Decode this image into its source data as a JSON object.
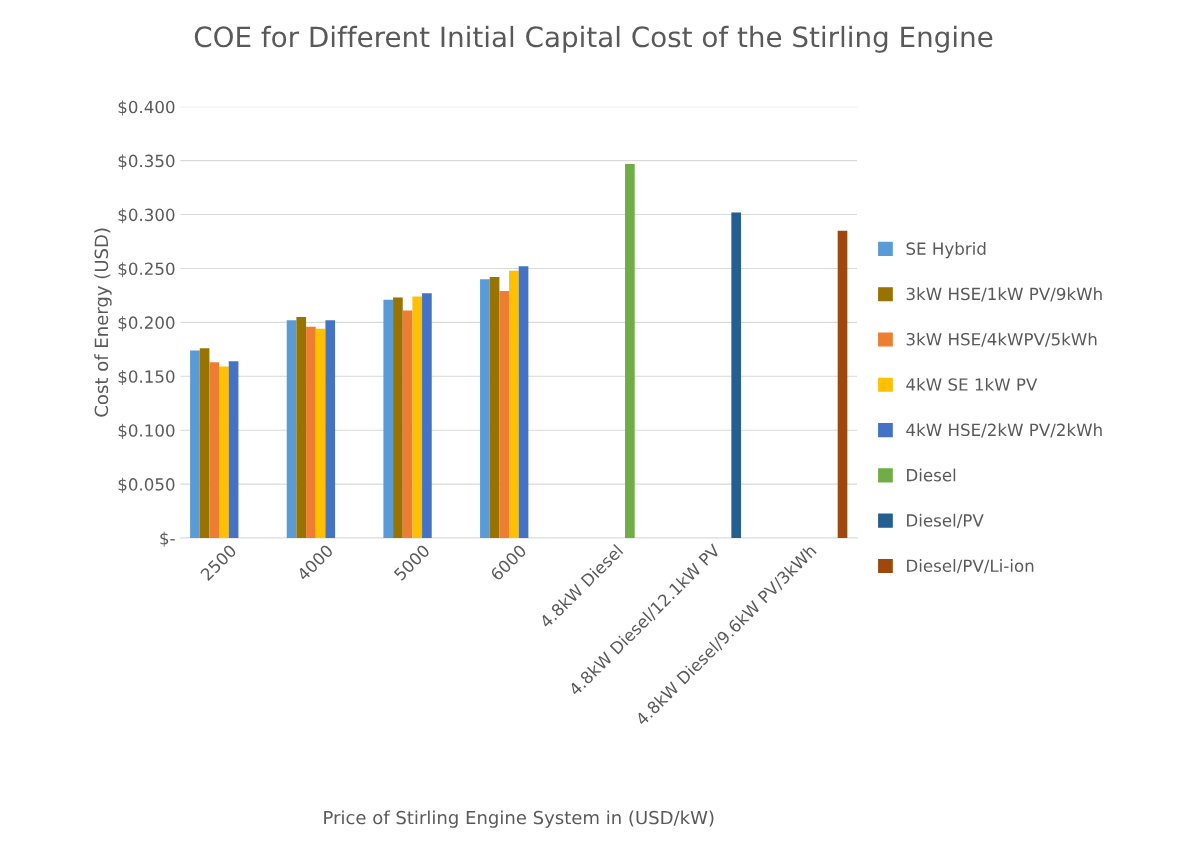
{
  "chart_data": {
    "type": "bar",
    "title": "COE for Different Initial Capital Cost of the Stirling Engine",
    "xlabel": "Price of Stirling Engine System in (USD/kW)",
    "ylabel": "Cost of Energy (USD)",
    "categories": [
      "2500",
      "4000",
      "5000",
      "6000",
      "4.8kW Diesel",
      "4.8kW Diesel/12.1kW PV",
      "4.8kW Diesel/9.6kW PV/3kWh"
    ],
    "series": [
      {
        "name": "SE Hybrid",
        "color": "#5b9bd5",
        "values": [
          0.174,
          0.202,
          0.221,
          0.24,
          null,
          null,
          null
        ]
      },
      {
        "name": "3kW HSE/1kW PV/9kWh",
        "color": "#997300",
        "values": [
          0.176,
          0.205,
          0.223,
          0.242,
          null,
          null,
          null
        ]
      },
      {
        "name": "3kW HSE/4kWPV/5kWh",
        "color": "#ed7d31",
        "values": [
          0.163,
          0.196,
          0.211,
          0.229,
          null,
          null,
          null
        ]
      },
      {
        "name": "4kW SE 1kW PV",
        "color": "#ffc000",
        "values": [
          0.159,
          0.194,
          0.224,
          0.248,
          null,
          null,
          null
        ]
      },
      {
        "name": "4kW HSE/2kW PV/2kWh",
        "color": "#4472c4",
        "values": [
          0.164,
          0.202,
          0.227,
          0.252,
          null,
          null,
          null
        ]
      },
      {
        "name": "Diesel",
        "color": "#70ad47",
        "values": [
          null,
          null,
          null,
          null,
          0.347,
          null,
          null
        ]
      },
      {
        "name": "Diesel/PV",
        "color": "#255e91",
        "values": [
          null,
          null,
          null,
          null,
          null,
          0.302,
          null
        ]
      },
      {
        "name": "Diesel/PV/Li-ion",
        "color": "#9e480e",
        "values": [
          null,
          null,
          null,
          null,
          null,
          null,
          0.285
        ]
      }
    ],
    "ylim": [
      0,
      0.4
    ],
    "yticks": [
      {
        "value": 0,
        "label": "$-"
      },
      {
        "value": 0.05,
        "label": "$0.050"
      },
      {
        "value": 0.1,
        "label": "$0.100"
      },
      {
        "value": 0.15,
        "label": "$0.150"
      },
      {
        "value": 0.2,
        "label": "$0.200"
      },
      {
        "value": 0.25,
        "label": "$0.250"
      },
      {
        "value": 0.3,
        "label": "$0.300"
      },
      {
        "value": 0.35,
        "label": "$0.350"
      },
      {
        "value": 0.4,
        "label": "$0.400"
      }
    ],
    "grid": "y",
    "legend": "right"
  }
}
